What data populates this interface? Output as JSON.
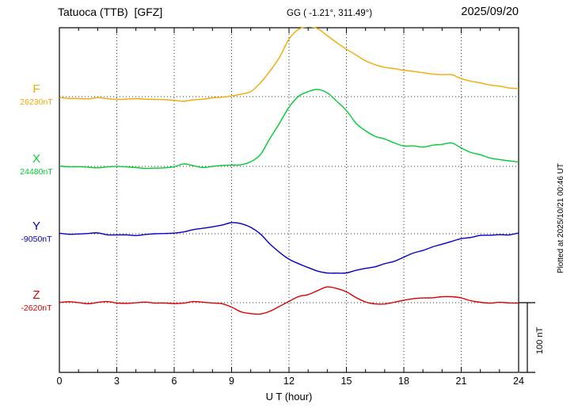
{
  "header": {
    "station_title": "Tatuoca (TTB)  [GFZ]",
    "gg_coords": "GG ( -1.21°, 311.49°)",
    "date": "2025/09/20"
  },
  "side": {
    "scale_label": "100 nT",
    "plotted_at": "Plotted at 2025/10/21 00:46 UT"
  },
  "chart_data": {
    "type": "line",
    "title": "Tatuoca (TTB)  [GFZ]",
    "xlabel": "U T (hour)",
    "x_range": [
      0,
      24
    ],
    "x_ticks": [
      0,
      3,
      6,
      9,
      12,
      15,
      18,
      21,
      24
    ],
    "hours_step": 0.5,
    "scale_bar_nT": 100,
    "grid": "dotted vertical lines at 3h ticks, dotted horizontal baselines per component",
    "series": [
      {
        "name": "F",
        "baseline_label": "26230nT",
        "baseline_nT": 26230,
        "color": "#f5a800",
        "offsets_nT": [
          -2,
          -3,
          -2,
          -3,
          -2,
          -3,
          -4,
          -4,
          -3,
          -4,
          -4,
          -5,
          -5,
          -7,
          -5,
          -3,
          -2,
          -1,
          1,
          3,
          8,
          20,
          37,
          57,
          82,
          96,
          101,
          97,
          88,
          78,
          68,
          60,
          52,
          46,
          42,
          40,
          38,
          36,
          34,
          33,
          32,
          31,
          26,
          22,
          20,
          17,
          15,
          13,
          11
        ]
      },
      {
        "name": "X",
        "baseline_label": "24480nT",
        "baseline_nT": 24480,
        "color": "#00cc33",
        "offsets_nT": [
          0,
          -1,
          0,
          -1,
          -2,
          -1,
          0,
          -1,
          -2,
          -3,
          -2,
          -2,
          0,
          3,
          1,
          -1,
          0,
          1,
          2,
          3,
          6,
          17,
          40,
          62,
          85,
          100,
          107,
          110,
          106,
          93,
          80,
          62,
          51,
          43,
          39,
          34,
          30,
          29,
          28,
          30,
          32,
          34,
          27,
          20,
          16,
          12,
          10,
          8,
          7
        ]
      },
      {
        "name": "Y",
        "baseline_label": "-9050nT",
        "baseline_nT": -9050,
        "color": "#0000cc",
        "offsets_nT": [
          0,
          -1,
          -1,
          0,
          1,
          -1,
          -2,
          -1,
          -2,
          -1,
          0,
          1,
          1,
          3,
          6,
          8,
          10,
          13,
          16,
          15,
          9,
          0,
          -14,
          -26,
          -36,
          -43,
          -49,
          -53,
          -56,
          -57,
          -56,
          -52,
          -49,
          -47,
          -43,
          -39,
          -33,
          -28,
          -24,
          -19,
          -15,
          -11,
          -7,
          -5,
          -3,
          -2,
          -2,
          -1,
          1
        ]
      },
      {
        "name": "Z",
        "baseline_label": "-2620nT",
        "baseline_nT": -2620,
        "color": "#dd0000",
        "offsets_nT": [
          0,
          1,
          0,
          -1,
          0,
          1,
          0,
          -1,
          0,
          1,
          0,
          -1,
          -1,
          0,
          1,
          0,
          0,
          -2,
          -7,
          -13,
          -16,
          -17,
          -12,
          -6,
          2,
          8,
          11,
          17,
          22,
          20,
          15,
          7,
          1,
          -2,
          -2,
          0,
          3,
          6,
          6,
          7,
          8,
          8,
          7,
          3,
          1,
          0,
          0,
          -1,
          -1
        ]
      }
    ]
  }
}
